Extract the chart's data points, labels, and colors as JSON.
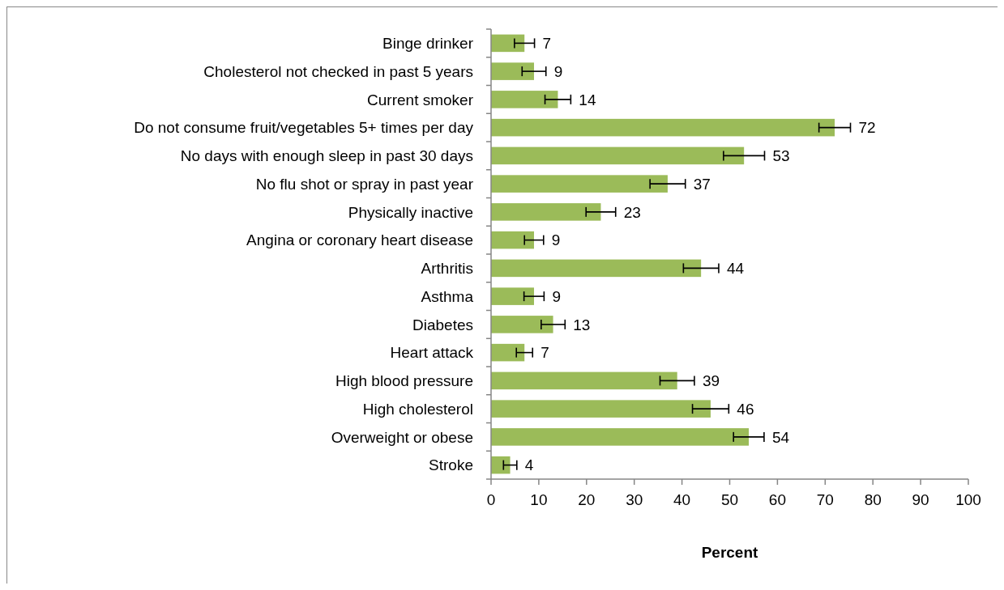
{
  "chart_data": {
    "type": "bar",
    "orientation": "horizontal",
    "xlabel": "Percent",
    "categories": [
      "Binge drinker",
      "Cholesterol not checked in past 5 years",
      "Current smoker",
      "Do not consume fruit/vegetables 5+ times per day",
      "No days with enough sleep in past 30 days",
      "No flu shot or spray in past year",
      "Physically inactive",
      "Angina or coronary heart disease",
      "Arthritis",
      "Asthma",
      "Diabetes",
      "Heart attack",
      "High blood pressure",
      "High cholesterol",
      "Overweight or obese",
      "Stroke"
    ],
    "values": [
      7,
      9,
      14,
      72,
      53,
      37,
      23,
      9,
      44,
      9,
      13,
      7,
      39,
      46,
      54,
      4
    ],
    "errors": [
      2.1,
      2.5,
      2.7,
      3.3,
      4.3,
      3.7,
      3.1,
      2,
      3.7,
      2.1,
      2.5,
      1.7,
      3.6,
      3.8,
      3.2,
      1.4
    ],
    "color": "#9bbb59",
    "data_labels": true,
    "xlim": [
      0,
      100
    ],
    "xticks": [
      0,
      10,
      20,
      30,
      40,
      50,
      60,
      70,
      80,
      90,
      100
    ]
  }
}
